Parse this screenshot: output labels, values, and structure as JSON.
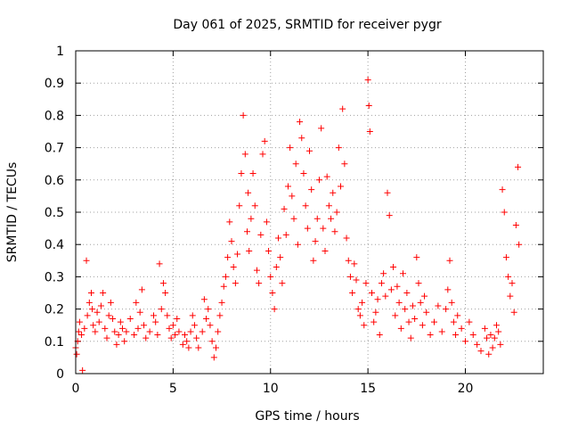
{
  "chart_data": {
    "type": "scatter",
    "title": "Day 061 of 2025, SRMTID for receiver pygr",
    "xlabel": "GPS time / hours",
    "ylabel": "SRMTID / TECUs",
    "xlim": [
      0,
      24
    ],
    "ylim": [
      0,
      1
    ],
    "xticks": [
      0,
      5,
      10,
      15,
      20
    ],
    "xtick_labels": [
      "0",
      "5",
      "10",
      "15",
      "20"
    ],
    "yticks": [
      0,
      0.1,
      0.2,
      0.3,
      0.4,
      0.5,
      0.6,
      0.7,
      0.8,
      0.9,
      1
    ],
    "ytick_labels": [
      "0",
      "0.1",
      "0.2",
      "0.3",
      "0.4",
      "0.5",
      "0.6",
      "0.7",
      "0.8",
      "0.9",
      "1"
    ],
    "grid": true,
    "marker": "+",
    "color": "#ff0000",
    "series": [
      {
        "name": "SRMTID",
        "x": [
          0.0,
          0.05,
          0.1,
          0.15,
          0.2,
          0.3,
          0.35,
          0.45,
          0.55,
          0.6,
          0.7,
          0.8,
          0.85,
          0.9,
          1.0,
          1.1,
          1.2,
          1.3,
          1.4,
          1.5,
          1.6,
          1.7,
          1.8,
          1.9,
          2.0,
          2.1,
          2.2,
          2.3,
          2.4,
          2.5,
          2.6,
          2.8,
          3.0,
          3.1,
          3.2,
          3.3,
          3.4,
          3.5,
          3.6,
          3.8,
          4.0,
          4.1,
          4.2,
          4.3,
          4.4,
          4.5,
          4.6,
          4.7,
          4.8,
          4.9,
          5.0,
          5.1,
          5.2,
          5.3,
          5.5,
          5.6,
          5.7,
          5.8,
          5.9,
          6.0,
          6.1,
          6.2,
          6.3,
          6.5,
          6.6,
          6.7,
          6.8,
          6.9,
          7.0,
          7.1,
          7.2,
          7.3,
          7.4,
          7.5,
          7.6,
          7.7,
          7.8,
          7.9,
          8.0,
          8.1,
          8.2,
          8.3,
          8.4,
          8.5,
          8.6,
          8.7,
          8.8,
          8.85,
          8.9,
          9.0,
          9.1,
          9.2,
          9.3,
          9.4,
          9.5,
          9.6,
          9.7,
          9.8,
          9.9,
          10.0,
          10.1,
          10.2,
          10.3,
          10.4,
          10.5,
          10.6,
          10.7,
          10.8,
          10.9,
          11.0,
          11.1,
          11.2,
          11.3,
          11.4,
          11.5,
          11.6,
          11.7,
          11.8,
          11.9,
          12.0,
          12.1,
          12.2,
          12.3,
          12.4,
          12.5,
          12.6,
          12.7,
          12.8,
          12.9,
          13.0,
          13.1,
          13.2,
          13.3,
          13.4,
          13.5,
          13.6,
          13.7,
          13.8,
          13.9,
          14.0,
          14.1,
          14.2,
          14.3,
          14.4,
          14.5,
          14.6,
          14.7,
          14.8,
          14.9,
          15.0,
          15.05,
          15.1,
          15.2,
          15.3,
          15.4,
          15.5,
          15.6,
          15.7,
          15.8,
          15.9,
          16.0,
          16.1,
          16.2,
          16.3,
          16.4,
          16.5,
          16.6,
          16.7,
          16.8,
          16.9,
          17.0,
          17.1,
          17.2,
          17.3,
          17.4,
          17.5,
          17.6,
          17.7,
          17.8,
          17.9,
          18.0,
          18.2,
          18.4,
          18.6,
          18.8,
          19.0,
          19.1,
          19.2,
          19.3,
          19.4,
          19.5,
          19.6,
          19.8,
          20.0,
          20.2,
          20.4,
          20.6,
          20.8,
          21.0,
          21.1,
          21.2,
          21.3,
          21.4,
          21.5,
          21.6,
          21.7,
          21.8,
          21.9,
          22.0,
          22.1,
          22.2,
          22.3,
          22.4,
          22.5,
          22.6,
          22.7,
          22.75
        ],
        "y": [
          0.08,
          0.06,
          0.1,
          0.13,
          0.16,
          0.12,
          0.01,
          0.14,
          0.35,
          0.18,
          0.22,
          0.25,
          0.2,
          0.15,
          0.13,
          0.19,
          0.16,
          0.21,
          0.25,
          0.14,
          0.11,
          0.18,
          0.22,
          0.17,
          0.13,
          0.09,
          0.12,
          0.16,
          0.14,
          0.1,
          0.13,
          0.17,
          0.12,
          0.22,
          0.14,
          0.19,
          0.26,
          0.15,
          0.11,
          0.13,
          0.18,
          0.16,
          0.12,
          0.34,
          0.2,
          0.28,
          0.25,
          0.18,
          0.14,
          0.11,
          0.15,
          0.12,
          0.17,
          0.13,
          0.09,
          0.12,
          0.1,
          0.08,
          0.13,
          0.18,
          0.15,
          0.11,
          0.08,
          0.13,
          0.23,
          0.17,
          0.2,
          0.15,
          0.1,
          0.05,
          0.08,
          0.13,
          0.18,
          0.22,
          0.27,
          0.3,
          0.36,
          0.47,
          0.41,
          0.33,
          0.28,
          0.37,
          0.52,
          0.62,
          0.8,
          0.68,
          0.44,
          0.56,
          0.38,
          0.48,
          0.62,
          0.52,
          0.32,
          0.28,
          0.43,
          0.68,
          0.72,
          0.47,
          0.38,
          0.3,
          0.25,
          0.2,
          0.33,
          0.42,
          0.36,
          0.28,
          0.51,
          0.43,
          0.58,
          0.7,
          0.55,
          0.48,
          0.65,
          0.4,
          0.78,
          0.73,
          0.62,
          0.52,
          0.45,
          0.69,
          0.57,
          0.35,
          0.41,
          0.48,
          0.6,
          0.76,
          0.45,
          0.38,
          0.61,
          0.52,
          0.48,
          0.56,
          0.44,
          0.5,
          0.7,
          0.58,
          0.82,
          0.65,
          0.42,
          0.35,
          0.3,
          0.25,
          0.34,
          0.29,
          0.2,
          0.18,
          0.22,
          0.15,
          0.28,
          0.91,
          0.83,
          0.75,
          0.25,
          0.16,
          0.19,
          0.23,
          0.12,
          0.28,
          0.31,
          0.24,
          0.56,
          0.49,
          0.26,
          0.33,
          0.18,
          0.27,
          0.22,
          0.14,
          0.31,
          0.2,
          0.25,
          0.16,
          0.11,
          0.21,
          0.17,
          0.36,
          0.28,
          0.22,
          0.15,
          0.24,
          0.19,
          0.12,
          0.16,
          0.21,
          0.13,
          0.2,
          0.26,
          0.35,
          0.22,
          0.16,
          0.12,
          0.18,
          0.14,
          0.1,
          0.16,
          0.12,
          0.09,
          0.07,
          0.14,
          0.11,
          0.06,
          0.12,
          0.08,
          0.11,
          0.15,
          0.13,
          0.09,
          0.57,
          0.5,
          0.36,
          0.3,
          0.24,
          0.28,
          0.19,
          0.46,
          0.64,
          0.4
        ]
      }
    ]
  }
}
